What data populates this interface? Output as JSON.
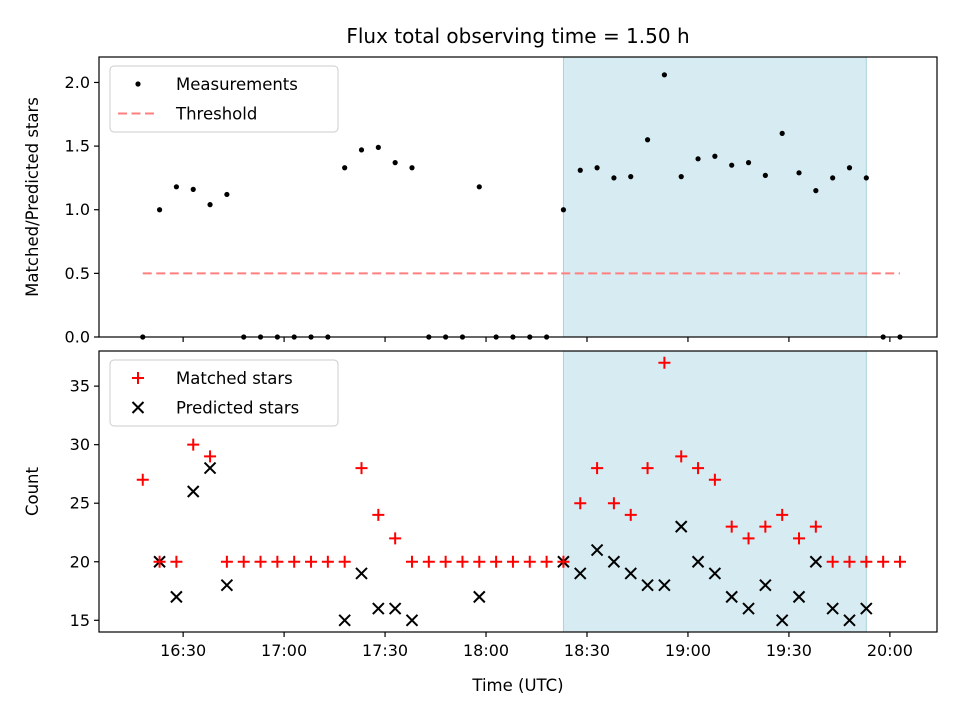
{
  "chart_data": [
    {
      "type": "scatter",
      "title": "Flux total observing time = 1.50 h",
      "xlabel": "",
      "ylabel": "Matched/Predicted stars",
      "xlim": [
        "16:05",
        "20:14"
      ],
      "ylim": [
        0,
        2.2
      ],
      "yticks": [
        "0.0",
        "0.5",
        "1.0",
        "1.5",
        "2.0"
      ],
      "legend_position": "upper left",
      "shaded_region": {
        "x_start": "18:23",
        "x_end": "19:53",
        "color": "#add8e6"
      },
      "series": [
        {
          "name": "Measurements",
          "marker": "dot",
          "color": "#000000",
          "x": [
            "16:18",
            "16:23",
            "16:28",
            "16:33",
            "16:38",
            "16:43",
            "16:48",
            "16:53",
            "16:58",
            "17:03",
            "17:08",
            "17:13",
            "17:18",
            "17:23",
            "17:28",
            "17:33",
            "17:38",
            "17:43",
            "17:48",
            "17:53",
            "17:58",
            "18:03",
            "18:08",
            "18:13",
            "18:18",
            "18:23",
            "18:28",
            "18:33",
            "18:38",
            "18:43",
            "18:48",
            "18:53",
            "18:58",
            "19:03",
            "19:08",
            "19:13",
            "19:18",
            "19:23",
            "19:28",
            "19:33",
            "19:38",
            "19:43",
            "19:48",
            "19:53",
            "19:58",
            "20:03"
          ],
          "y": [
            0.0,
            1.0,
            1.18,
            1.16,
            1.04,
            1.12,
            0.0,
            0.0,
            0.0,
            0.0,
            0.0,
            0.0,
            1.33,
            1.47,
            1.49,
            1.37,
            1.33,
            0.0,
            0.0,
            0.0,
            1.18,
            0.0,
            0.0,
            0.0,
            0.0,
            1.0,
            1.31,
            1.33,
            1.25,
            1.26,
            1.55,
            2.06,
            1.26,
            1.4,
            1.42,
            1.35,
            1.37,
            1.27,
            1.6,
            1.29,
            1.15,
            1.25,
            1.33,
            1.25,
            0.0,
            0.0
          ]
        },
        {
          "name": "Threshold",
          "style": "dashed",
          "color": "#ff7f7f",
          "x": [
            "16:18",
            "20:03"
          ],
          "y": [
            0.5,
            0.5
          ]
        }
      ]
    },
    {
      "type": "scatter",
      "title": "",
      "xlabel": "Time (UTC)",
      "ylabel": "Count",
      "xlim": [
        "16:05",
        "20:14"
      ],
      "ylim": [
        14,
        38
      ],
      "yticks": [
        "15",
        "20",
        "25",
        "30",
        "35"
      ],
      "xticks": [
        "16:30",
        "17:00",
        "17:30",
        "18:00",
        "18:30",
        "19:00",
        "19:30",
        "20:00"
      ],
      "legend_position": "upper left",
      "shaded_region": {
        "x_start": "18:23",
        "x_end": "19:53",
        "color": "#add8e6"
      },
      "series": [
        {
          "name": "Matched stars",
          "marker": "plus",
          "color": "#ff0000",
          "x": [
            "16:18",
            "16:23",
            "16:28",
            "16:33",
            "16:38",
            "16:43",
            "16:48",
            "16:53",
            "16:58",
            "17:03",
            "17:08",
            "17:13",
            "17:18",
            "17:23",
            "17:28",
            "17:33",
            "17:38",
            "17:43",
            "17:48",
            "17:53",
            "17:58",
            "18:03",
            "18:08",
            "18:13",
            "18:18",
            "18:23",
            "18:28",
            "18:33",
            "18:38",
            "18:43",
            "18:48",
            "18:53",
            "18:58",
            "19:03",
            "19:08",
            "19:13",
            "19:18",
            "19:23",
            "19:28",
            "19:33",
            "19:38",
            "19:43",
            "19:48",
            "19:53",
            "19:58",
            "20:03"
          ],
          "y": [
            27,
            20,
            20,
            30,
            29,
            20,
            20,
            20,
            20,
            20,
            20,
            20,
            20,
            28,
            24,
            22,
            20,
            20,
            20,
            20,
            20,
            20,
            20,
            20,
            20,
            20,
            25,
            28,
            25,
            24,
            28,
            37,
            29,
            28,
            27,
            23,
            22,
            23,
            24,
            22,
            23,
            20,
            20,
            20,
            20,
            20
          ]
        },
        {
          "name": "Predicted stars",
          "marker": "x",
          "color": "#000000",
          "x": [
            "16:23",
            "16:28",
            "16:33",
            "16:38",
            "16:43",
            "17:18",
            "17:23",
            "17:28",
            "17:33",
            "17:38",
            "17:58",
            "18:23",
            "18:28",
            "18:33",
            "18:38",
            "18:43",
            "18:48",
            "18:53",
            "18:58",
            "19:03",
            "19:08",
            "19:13",
            "19:18",
            "19:23",
            "19:28",
            "19:33",
            "19:38",
            "19:43",
            "19:48",
            "19:53"
          ],
          "y": [
            20,
            17,
            26,
            28,
            18,
            15,
            19,
            16,
            16,
            15,
            17,
            20,
            19,
            21,
            20,
            19,
            18,
            18,
            23,
            20,
            19,
            17,
            16,
            18,
            15,
            17,
            20,
            16,
            15,
            16
          ]
        }
      ]
    }
  ]
}
